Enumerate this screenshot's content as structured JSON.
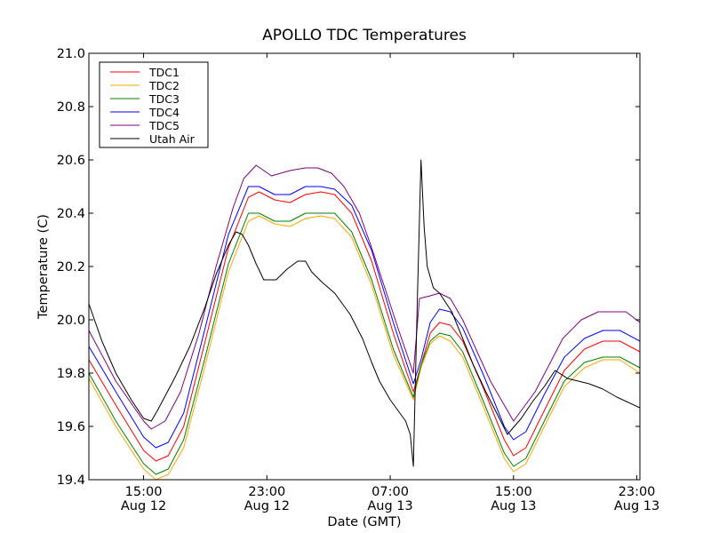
{
  "chart_data": {
    "type": "line",
    "title": "APOLLO TDC Temperatures",
    "xlabel": "Date (GMT)",
    "ylabel": "Temperature (C)",
    "x_units": "hours since Aug 12 00:00 GMT",
    "xlim": [
      11.45,
      47.2
    ],
    "ylim": [
      19.4,
      21.0
    ],
    "grid": false,
    "legend_position": "top-left",
    "x_ticks": [
      {
        "value": 15,
        "label_time": "15:00",
        "label_date": "Aug 12"
      },
      {
        "value": 23,
        "label_time": "23:00",
        "label_date": "Aug 12"
      },
      {
        "value": 31,
        "label_time": "07:00",
        "label_date": "Aug 13"
      },
      {
        "value": 39,
        "label_time": "15:00",
        "label_date": "Aug 13"
      },
      {
        "value": 47,
        "label_time": "23:00",
        "label_date": "Aug 13"
      }
    ],
    "y_ticks": [
      {
        "value": 19.4,
        "label": "19.4"
      },
      {
        "value": 19.6,
        "label": "19.6"
      },
      {
        "value": 19.8,
        "label": "19.8"
      },
      {
        "value": 20.0,
        "label": "20.0"
      },
      {
        "value": 20.2,
        "label": "20.2"
      },
      {
        "value": 20.4,
        "label": "20.4"
      },
      {
        "value": 20.6,
        "label": "20.6"
      },
      {
        "value": 20.8,
        "label": "20.8"
      },
      {
        "value": 21.0,
        "label": "21.0"
      }
    ],
    "series": [
      {
        "name": "TDC1",
        "color": "#ff0000",
        "x": [
          11.45,
          13.2,
          15.0,
          15.8,
          16.6,
          17.6,
          19.0,
          20.5,
          21.8,
          22.5,
          23.5,
          24.5,
          25.5,
          26.5,
          27.4,
          28.5,
          29.8,
          31.2,
          32.5,
          33.0,
          33.6,
          34.2,
          34.9,
          35.7,
          37.0,
          38.4,
          39.0,
          39.8,
          41.0,
          42.3,
          43.6,
          44.8,
          45.9,
          47.2
        ],
        "y": [
          19.85,
          19.68,
          19.51,
          19.47,
          19.49,
          19.6,
          19.92,
          20.27,
          20.46,
          20.48,
          20.45,
          20.44,
          20.47,
          20.48,
          20.47,
          20.4,
          20.22,
          19.95,
          19.73,
          19.83,
          19.95,
          19.99,
          19.98,
          19.92,
          19.75,
          19.55,
          19.49,
          19.52,
          19.66,
          19.81,
          19.89,
          19.92,
          19.92,
          19.88
        ]
      },
      {
        "name": "TDC2",
        "color": "#ffa500",
        "x": [
          11.45,
          13.2,
          15.0,
          15.8,
          16.6,
          17.6,
          19.0,
          20.5,
          21.8,
          22.5,
          23.5,
          24.5,
          25.5,
          26.5,
          27.4,
          28.5,
          29.8,
          31.2,
          32.5,
          33.0,
          33.6,
          34.2,
          34.9,
          35.7,
          37.0,
          38.4,
          39.0,
          39.8,
          41.0,
          42.3,
          43.6,
          44.8,
          45.9,
          47.2
        ],
        "y": [
          19.78,
          19.6,
          19.44,
          19.4,
          19.42,
          19.52,
          19.83,
          20.18,
          20.37,
          20.39,
          20.36,
          20.35,
          20.38,
          20.39,
          20.38,
          20.31,
          20.13,
          19.87,
          19.7,
          19.82,
          19.91,
          19.94,
          19.92,
          19.86,
          19.68,
          19.48,
          19.43,
          19.46,
          19.6,
          19.75,
          19.82,
          19.85,
          19.85,
          19.8
        ]
      },
      {
        "name": "TDC3",
        "color": "#008000",
        "x": [
          11.45,
          13.2,
          15.0,
          15.8,
          16.6,
          17.6,
          19.0,
          20.5,
          21.8,
          22.5,
          23.5,
          24.5,
          25.5,
          26.5,
          27.4,
          28.5,
          29.8,
          31.2,
          32.5,
          33.0,
          33.6,
          34.2,
          34.9,
          35.7,
          37.0,
          38.4,
          39.0,
          39.8,
          41.0,
          42.3,
          43.6,
          44.8,
          45.9,
          47.2
        ],
        "y": [
          19.8,
          19.62,
          19.46,
          19.42,
          19.44,
          19.55,
          19.86,
          20.21,
          20.4,
          20.4,
          20.37,
          20.37,
          20.4,
          20.4,
          20.4,
          20.33,
          20.15,
          19.89,
          19.71,
          19.83,
          19.92,
          19.95,
          19.94,
          19.88,
          19.7,
          19.5,
          19.45,
          19.48,
          19.62,
          19.77,
          19.84,
          19.86,
          19.86,
          19.82
        ]
      },
      {
        "name": "TDC4",
        "color": "#0000ff",
        "x": [
          11.45,
          13.2,
          15.0,
          15.8,
          16.6,
          17.6,
          19.0,
          20.5,
          21.8,
          22.5,
          23.5,
          24.5,
          25.5,
          26.5,
          27.4,
          28.5,
          29.8,
          31.2,
          32.5,
          33.0,
          33.6,
          34.2,
          34.9,
          35.7,
          37.0,
          38.4,
          39.0,
          39.8,
          41.0,
          42.3,
          43.6,
          44.8,
          45.9,
          47.2
        ],
        "y": [
          19.9,
          19.73,
          19.56,
          19.52,
          19.54,
          19.65,
          19.97,
          20.32,
          20.5,
          20.5,
          20.47,
          20.47,
          20.5,
          20.5,
          20.49,
          20.43,
          20.26,
          19.99,
          19.76,
          19.85,
          19.99,
          20.04,
          20.03,
          19.97,
          19.8,
          19.6,
          19.55,
          19.58,
          19.72,
          19.86,
          19.93,
          19.96,
          19.96,
          19.92
        ]
      },
      {
        "name": "TDC5",
        "color": "#800080",
        "x": [
          11.45,
          13.2,
          15.0,
          15.5,
          16.4,
          17.4,
          18.6,
          19.7,
          20.8,
          21.5,
          22.3,
          23.3,
          24.5,
          25.5,
          26.3,
          27.2,
          28.0,
          29.0,
          29.8,
          31.5,
          32.5,
          32.9,
          33.6,
          34.2,
          34.9,
          35.7,
          37.5,
          39.0,
          40.4,
          42.2,
          43.4,
          44.5,
          46.3,
          47.2
        ],
        "y": [
          19.96,
          19.77,
          19.62,
          19.59,
          19.62,
          19.73,
          19.95,
          20.2,
          20.42,
          20.53,
          20.58,
          20.54,
          20.56,
          20.57,
          20.57,
          20.55,
          20.5,
          20.4,
          20.27,
          19.97,
          19.8,
          20.08,
          20.09,
          20.1,
          20.08,
          20.0,
          19.77,
          19.62,
          19.73,
          19.93,
          20.0,
          20.03,
          20.03,
          19.99
        ]
      },
      {
        "name": "Utah Air",
        "color": "#000000",
        "x": [
          11.45,
          12.3,
          13.2,
          14.2,
          15.0,
          15.5,
          15.9,
          17.0,
          18.0,
          19.0,
          19.7,
          20.5,
          21.0,
          21.4,
          21.8,
          22.3,
          22.8,
          23.6,
          24.3,
          25.0,
          25.5,
          25.9,
          26.6,
          27.4,
          28.4,
          29.2,
          29.8,
          30.3,
          31.0,
          31.5,
          32.0,
          32.3,
          32.5,
          32.75,
          33.0,
          33.2,
          33.4,
          33.8,
          34.2,
          35.0,
          35.7,
          36.4,
          37.2,
          38.0,
          38.6,
          39.5,
          40.2,
          41.0,
          41.7,
          42.5,
          43.2,
          43.9,
          44.8,
          45.7,
          47.2
        ],
        "y": [
          20.06,
          19.92,
          19.8,
          19.7,
          19.63,
          19.62,
          19.66,
          19.78,
          19.9,
          20.05,
          20.17,
          20.28,
          20.33,
          20.32,
          20.28,
          20.21,
          20.15,
          20.15,
          20.19,
          20.22,
          20.22,
          20.18,
          20.14,
          20.1,
          20.02,
          19.93,
          19.84,
          19.77,
          19.7,
          19.66,
          19.62,
          19.57,
          19.45,
          20.05,
          20.6,
          20.35,
          20.2,
          20.12,
          20.1,
          20.03,
          19.93,
          19.83,
          19.73,
          19.64,
          19.57,
          19.63,
          19.69,
          19.75,
          19.81,
          19.78,
          19.77,
          19.76,
          19.74,
          19.71,
          19.67
        ]
      }
    ]
  }
}
